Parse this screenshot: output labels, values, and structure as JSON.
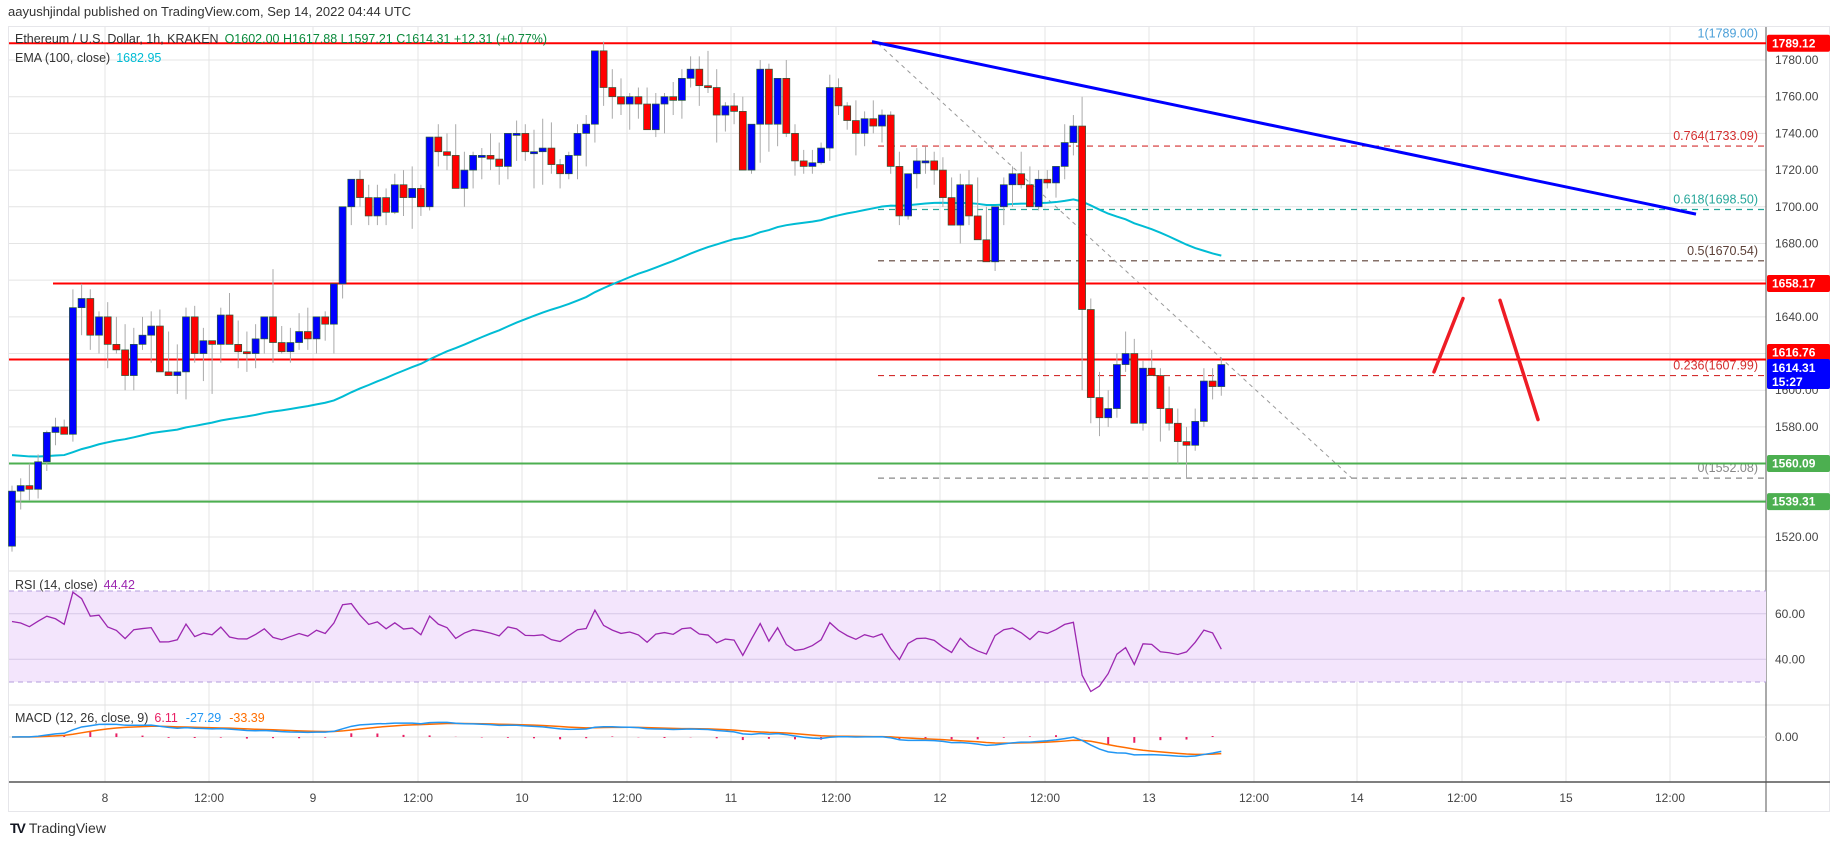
{
  "header": {
    "published": "aayushjindal published on TradingView.com, Sep 14, 2022 04:44 UTC"
  },
  "legend": {
    "symbol": "Ethereum / U.S. Dollar, 1h, KRAKEN",
    "ohlc": "O1602.00  H1617.88  L1597.21  C1614.31  +12.31 (+0.77%)",
    "ema_label": "EMA (100, close)",
    "ema_value": "1682.95"
  },
  "rsi": {
    "label": "RSI (14, close)",
    "value": "44.42"
  },
  "macd": {
    "label": "MACD (12, 26, close, 9)",
    "hist": "6.11",
    "macd": "-27.29",
    "signal": "-33.39"
  },
  "footer": {
    "brand": "TradingView"
  },
  "colors": {
    "bull": "#0000ff",
    "bear": "#ff0000",
    "ema": "#00bcd4",
    "resistance": "#ff0000",
    "support": "#4caf50",
    "trendline": "#0000ff",
    "rsi": "#9c27b0",
    "macd": "#2196f3",
    "signal": "#ff6d00",
    "hist": "#e91e63"
  },
  "chart_data": {
    "type": "candlestick",
    "title": "Ethereum / U.S. Dollar, 1h, KRAKEN",
    "xlabel": "",
    "ylabel": "USD",
    "ylim": [
      1505,
      1800
    ],
    "x_ticks": [
      "8",
      "12:00",
      "9",
      "12:00",
      "10",
      "12:00",
      "11",
      "12:00",
      "12",
      "12:00",
      "13",
      "12:00",
      "14",
      "12:00",
      "15",
      "12:00"
    ],
    "y_ticks": [
      1780,
      1760,
      1740,
      1720,
      1700,
      1680,
      1640,
      1600,
      1580,
      1520
    ],
    "price_tags": [
      {
        "value": "1789.12",
        "color": "#ff0000"
      },
      {
        "value": "1658.17",
        "color": "#ff0000"
      },
      {
        "value": "1616.76",
        "color": "#ff0000"
      },
      {
        "value": "1614.31",
        "sub": "15:27",
        "color": "#0000ff"
      },
      {
        "value": "1560.09",
        "color": "#4caf50"
      },
      {
        "value": "1539.31",
        "color": "#4caf50"
      }
    ],
    "horizontal_levels": [
      {
        "price": 1789.12,
        "color": "#ff0000",
        "type": "resistance"
      },
      {
        "price": 1658.17,
        "color": "#ff0000",
        "type": "resistance"
      },
      {
        "price": 1616.76,
        "color": "#ff0000",
        "type": "resistance"
      },
      {
        "price": 1560.09,
        "color": "#4caf50",
        "type": "support"
      },
      {
        "price": 1539.31,
        "color": "#4caf50",
        "type": "support"
      }
    ],
    "fibonacci": [
      {
        "level": "1",
        "price": 1789.0,
        "label": "1(1789.00)",
        "color": "#4a9fd8"
      },
      {
        "level": "0.764",
        "price": 1733.09,
        "label": "0.764(1733.09)",
        "color": "#d32f2f"
      },
      {
        "level": "0.618",
        "price": 1698.5,
        "label": "0.618(1698.50)",
        "color": "#26a69a"
      },
      {
        "level": "0.5",
        "price": 1670.54,
        "label": "0.5(1670.54)",
        "color": "#5d4037"
      },
      {
        "level": "0.236",
        "price": 1607.99,
        "label": "0.236(1607.99)",
        "color": "#d32f2f"
      },
      {
        "level": "0",
        "price": 1552.08,
        "label": "0(1552.08)",
        "color": "#888888"
      }
    ],
    "trendline": {
      "from_price": 1790,
      "to_price": 1696,
      "color": "#0000ff"
    },
    "ema100_last": 1682.95,
    "last_close": 1614.31,
    "candles": [
      [
        1515,
        1548,
        1512,
        1545
      ],
      [
        1545,
        1552,
        1535,
        1548
      ],
      [
        1548,
        1560,
        1540,
        1546
      ],
      [
        1546,
        1565,
        1541,
        1561
      ],
      [
        1561,
        1578,
        1556,
        1577
      ],
      [
        1577,
        1585,
        1570,
        1580
      ],
      [
        1580,
        1584,
        1576,
        1576
      ],
      [
        1576,
        1655,
        1572,
        1645
      ],
      [
        1645,
        1658,
        1630,
        1650
      ],
      [
        1650,
        1655,
        1622,
        1630
      ],
      [
        1630,
        1643,
        1620,
        1640
      ],
      [
        1640,
        1648,
        1612,
        1625
      ],
      [
        1625,
        1640,
        1620,
        1622
      ],
      [
        1622,
        1636,
        1600,
        1608
      ],
      [
        1608,
        1634,
        1600,
        1625
      ],
      [
        1625,
        1640,
        1622,
        1630
      ],
      [
        1630,
        1643,
        1615,
        1635
      ],
      [
        1635,
        1644,
        1617,
        1610
      ],
      [
        1610,
        1632,
        1608,
        1608
      ],
      [
        1608,
        1625,
        1598,
        1610
      ],
      [
        1610,
        1645,
        1595,
        1640
      ],
      [
        1640,
        1646,
        1615,
        1620
      ],
      [
        1620,
        1634,
        1605,
        1627
      ],
      [
        1627,
        1627,
        1598,
        1625
      ],
      [
        1625,
        1645,
        1615,
        1641
      ],
      [
        1641,
        1653,
        1625,
        1625
      ],
      [
        1625,
        1638,
        1612,
        1621
      ],
      [
        1621,
        1632,
        1610,
        1620
      ],
      [
        1620,
        1636,
        1612,
        1628
      ],
      [
        1628,
        1640,
        1620,
        1640
      ],
      [
        1640,
        1666,
        1615,
        1626
      ],
      [
        1626,
        1635,
        1620,
        1621
      ],
      [
        1621,
        1634,
        1615,
        1626
      ],
      [
        1626,
        1642,
        1622,
        1632
      ],
      [
        1632,
        1645,
        1622,
        1628
      ],
      [
        1628,
        1640,
        1620,
        1640
      ],
      [
        1640,
        1643,
        1627,
        1636
      ],
      [
        1636,
        1654,
        1620,
        1658
      ],
      [
        1658,
        1700,
        1650,
        1700
      ],
      [
        1700,
        1715,
        1690,
        1715
      ],
      [
        1715,
        1720,
        1700,
        1705
      ],
      [
        1705,
        1712,
        1690,
        1695
      ],
      [
        1695,
        1712,
        1690,
        1705
      ],
      [
        1705,
        1710,
        1690,
        1697
      ],
      [
        1697,
        1718,
        1696,
        1712
      ],
      [
        1712,
        1720,
        1695,
        1705
      ],
      [
        1705,
        1722,
        1688,
        1710
      ],
      [
        1710,
        1712,
        1695,
        1700
      ],
      [
        1700,
        1725,
        1698,
        1738
      ],
      [
        1738,
        1745,
        1722,
        1730
      ],
      [
        1730,
        1740,
        1720,
        1728
      ],
      [
        1728,
        1745,
        1710,
        1710
      ],
      [
        1710,
        1730,
        1700,
        1720
      ],
      [
        1720,
        1730,
        1710,
        1728
      ],
      [
        1728,
        1732,
        1715,
        1728
      ],
      [
        1728,
        1740,
        1720,
        1726
      ],
      [
        1726,
        1735,
        1712,
        1722
      ],
      [
        1722,
        1735,
        1715,
        1740
      ],
      [
        1740,
        1747,
        1725,
        1740
      ],
      [
        1740,
        1745,
        1725,
        1730
      ],
      [
        1730,
        1742,
        1710,
        1730
      ],
      [
        1730,
        1748,
        1712,
        1732
      ],
      [
        1732,
        1746,
        1718,
        1723
      ],
      [
        1723,
        1726,
        1710,
        1718
      ],
      [
        1718,
        1730,
        1715,
        1728
      ],
      [
        1728,
        1745,
        1715,
        1740
      ],
      [
        1740,
        1750,
        1722,
        1745
      ],
      [
        1745,
        1782,
        1735,
        1785
      ],
      [
        1785,
        1790,
        1755,
        1765
      ],
      [
        1765,
        1775,
        1748,
        1760
      ],
      [
        1760,
        1770,
        1750,
        1756
      ],
      [
        1756,
        1762,
        1742,
        1760
      ],
      [
        1760,
        1765,
        1748,
        1756
      ],
      [
        1756,
        1765,
        1742,
        1742
      ],
      [
        1742,
        1762,
        1738,
        1756
      ],
      [
        1756,
        1762,
        1740,
        1760
      ],
      [
        1760,
        1768,
        1750,
        1758
      ],
      [
        1758,
        1775,
        1748,
        1770
      ],
      [
        1770,
        1782,
        1765,
        1775
      ],
      [
        1775,
        1782,
        1755,
        1766
      ],
      [
        1766,
        1785,
        1762,
        1765
      ],
      [
        1765,
        1775,
        1735,
        1750
      ],
      [
        1750,
        1757,
        1741,
        1755
      ],
      [
        1755,
        1762,
        1745,
        1752
      ],
      [
        1752,
        1760,
        1722,
        1720
      ],
      [
        1720,
        1740,
        1718,
        1745
      ],
      [
        1745,
        1780,
        1724,
        1775
      ],
      [
        1775,
        1778,
        1730,
        1745
      ],
      [
        1745,
        1760,
        1733,
        1770
      ],
      [
        1770,
        1780,
        1738,
        1740
      ],
      [
        1740,
        1745,
        1717,
        1725
      ],
      [
        1725,
        1731,
        1718,
        1722
      ],
      [
        1722,
        1731,
        1718,
        1724
      ],
      [
        1724,
        1735,
        1723,
        1732
      ],
      [
        1732,
        1772,
        1725,
        1765
      ],
      [
        1765,
        1770,
        1750,
        1755
      ],
      [
        1755,
        1757,
        1742,
        1747
      ],
      [
        1747,
        1758,
        1728,
        1740
      ],
      [
        1740,
        1752,
        1733,
        1748
      ],
      [
        1748,
        1758,
        1740,
        1744
      ],
      [
        1744,
        1753,
        1735,
        1750
      ],
      [
        1750,
        1752,
        1718,
        1722
      ],
      [
        1722,
        1730,
        1690,
        1695
      ],
      [
        1695,
        1718,
        1693,
        1718
      ],
      [
        1718,
        1732,
        1710,
        1725
      ],
      [
        1725,
        1733,
        1718,
        1725
      ],
      [
        1725,
        1730,
        1712,
        1720
      ],
      [
        1720,
        1727,
        1700,
        1705
      ],
      [
        1705,
        1716,
        1695,
        1690
      ],
      [
        1690,
        1718,
        1680,
        1712
      ],
      [
        1712,
        1720,
        1690,
        1695
      ],
      [
        1695,
        1716,
        1690,
        1682
      ],
      [
        1682,
        1700,
        1676,
        1670
      ],
      [
        1670,
        1692,
        1665,
        1700
      ],
      [
        1700,
        1716,
        1690,
        1712
      ],
      [
        1712,
        1722,
        1700,
        1718
      ],
      [
        1718,
        1730,
        1710,
        1712
      ],
      [
        1712,
        1722,
        1702,
        1700
      ],
      [
        1700,
        1720,
        1698,
        1715
      ],
      [
        1715,
        1720,
        1710,
        1713
      ],
      [
        1713,
        1722,
        1705,
        1722
      ],
      [
        1722,
        1745,
        1715,
        1735
      ],
      [
        1735,
        1750,
        1728,
        1744
      ],
      [
        1744,
        1760,
        1600,
        1644
      ],
      [
        1644,
        1650,
        1582,
        1596
      ],
      [
        1596,
        1610,
        1575,
        1585
      ],
      [
        1585,
        1600,
        1580,
        1590
      ],
      [
        1590,
        1620,
        1585,
        1614
      ],
      [
        1614,
        1632,
        1610,
        1620
      ],
      [
        1620,
        1628,
        1590,
        1582
      ],
      [
        1582,
        1616,
        1578,
        1612
      ],
      [
        1612,
        1622,
        1608,
        1608
      ],
      [
        1608,
        1612,
        1572,
        1590
      ],
      [
        1590,
        1602,
        1578,
        1582
      ],
      [
        1582,
        1590,
        1560,
        1572
      ],
      [
        1572,
        1580,
        1552,
        1570
      ],
      [
        1570,
        1590,
        1567,
        1583
      ],
      [
        1583,
        1612,
        1580,
        1605
      ],
      [
        1605,
        1612,
        1595,
        1602
      ],
      [
        1602,
        1618,
        1597,
        1614
      ]
    ],
    "rsi": {
      "ylim": [
        20,
        80
      ],
      "band": [
        30,
        70
      ],
      "last": 44.42
    },
    "macd": {
      "last_hist": 6.11,
      "last_macd": -27.29,
      "last_signal": -33.39
    }
  }
}
